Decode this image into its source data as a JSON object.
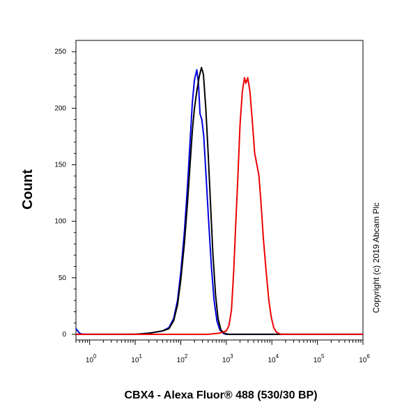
{
  "chart_data": {
    "type": "line",
    "title": "",
    "xlabel": "CBX4 - Alexa Fluor® 488 (530/30 BP)",
    "ylabel": "Count",
    "x_scale": "log",
    "xlim": [
      0.5,
      1000000
    ],
    "ylim": [
      -5,
      260
    ],
    "x_ticks": [
      {
        "value": 1,
        "base": "10",
        "exp": "0"
      },
      {
        "value": 10,
        "base": "10",
        "exp": "1"
      },
      {
        "value": 100,
        "base": "10",
        "exp": "2"
      },
      {
        "value": 1000,
        "base": "10",
        "exp": "3"
      },
      {
        "value": 10000,
        "base": "10",
        "exp": "4"
      },
      {
        "value": 100000,
        "base": "10",
        "exp": "5"
      },
      {
        "value": 1000000,
        "base": "10",
        "exp": "6"
      }
    ],
    "y_ticks": [
      {
        "value": 0,
        "label": "0"
      },
      {
        "value": 50,
        "label": "50"
      },
      {
        "value": 100,
        "label": "100"
      },
      {
        "value": 150,
        "label": "150"
      },
      {
        "value": 200,
        "label": "200"
      },
      {
        "value": 250,
        "label": "250"
      }
    ],
    "grid": false,
    "legend": "none",
    "annotation": "Copyright (c) 2019 Abcam Plc",
    "series": [
      {
        "color": "#0000dd",
        "points": [
          [
            0.5,
            5
          ],
          [
            0.6,
            1
          ],
          [
            0.7,
            0
          ],
          [
            10,
            0
          ],
          [
            20,
            1
          ],
          [
            40,
            3
          ],
          [
            55,
            6
          ],
          [
            70,
            14
          ],
          [
            85,
            30
          ],
          [
            100,
            55
          ],
          [
            120,
            90
          ],
          [
            140,
            130
          ],
          [
            160,
            170
          ],
          [
            180,
            205
          ],
          [
            200,
            225
          ],
          [
            225,
            234
          ],
          [
            245,
            222
          ],
          [
            265,
            195
          ],
          [
            290,
            190
          ],
          [
            320,
            175
          ],
          [
            360,
            140
          ],
          [
            410,
            100
          ],
          [
            470,
            60
          ],
          [
            540,
            30
          ],
          [
            620,
            12
          ],
          [
            720,
            4
          ],
          [
            850,
            1
          ],
          [
            1000,
            0
          ],
          [
            1000000,
            0
          ]
        ]
      },
      {
        "color": "#000000",
        "points": [
          [
            0.5,
            0
          ],
          [
            10,
            0
          ],
          [
            20,
            1
          ],
          [
            40,
            3
          ],
          [
            55,
            5
          ],
          [
            70,
            12
          ],
          [
            85,
            26
          ],
          [
            100,
            48
          ],
          [
            120,
            80
          ],
          [
            140,
            115
          ],
          [
            160,
            150
          ],
          [
            180,
            180
          ],
          [
            200,
            200
          ],
          [
            225,
            215
          ],
          [
            255,
            228
          ],
          [
            285,
            236
          ],
          [
            315,
            230
          ],
          [
            355,
            200
          ],
          [
            400,
            160
          ],
          [
            450,
            115
          ],
          [
            510,
            70
          ],
          [
            580,
            35
          ],
          [
            660,
            14
          ],
          [
            760,
            4
          ],
          [
            900,
            1
          ],
          [
            1100,
            0
          ],
          [
            1000000,
            0
          ]
        ]
      },
      {
        "color": "#ee0000",
        "points": [
          [
            0.5,
            0
          ],
          [
            400,
            0
          ],
          [
            700,
            1
          ],
          [
            1000,
            3
          ],
          [
            1150,
            8
          ],
          [
            1300,
            22
          ],
          [
            1450,
            55
          ],
          [
            1600,
            95
          ],
          [
            1800,
            140
          ],
          [
            2000,
            185
          ],
          [
            2250,
            215
          ],
          [
            2500,
            227
          ],
          [
            2700,
            222
          ],
          [
            2950,
            227
          ],
          [
            3300,
            215
          ],
          [
            3700,
            190
          ],
          [
            4200,
            160
          ],
          [
            4700,
            150
          ],
          [
            5200,
            140
          ],
          [
            5800,
            115
          ],
          [
            6500,
            85
          ],
          [
            7500,
            55
          ],
          [
            8600,
            30
          ],
          [
            9700,
            15
          ],
          [
            11000,
            6
          ],
          [
            12500,
            2
          ],
          [
            14000,
            1
          ],
          [
            16000,
            0
          ],
          [
            1000000,
            0
          ]
        ]
      }
    ]
  }
}
